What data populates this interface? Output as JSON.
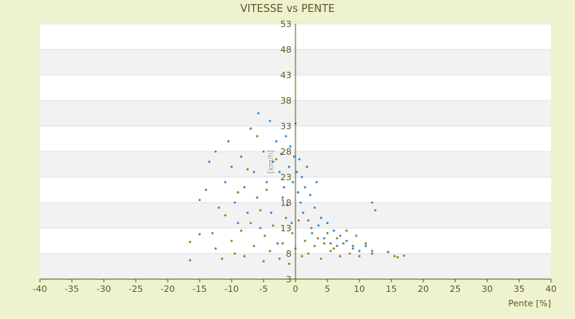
{
  "chart_data": {
    "type": "scatter",
    "title": "VITESSE vs PENTE",
    "xlabel": "Pente [%]",
    "ylabel": "[km/h]",
    "xlim": [
      -40,
      40
    ],
    "ylim": [
      3,
      53
    ],
    "x_ticks": [
      -40,
      -35,
      -30,
      -25,
      -20,
      -15,
      -10,
      -5,
      0,
      5,
      10,
      15,
      20,
      25,
      30,
      35,
      40
    ],
    "y_ticks": [
      3,
      8,
      13,
      18,
      23,
      28,
      33,
      38,
      43,
      48,
      53
    ],
    "grid": true,
    "band_colors": [
      "#ffffff",
      "#f2f2f2"
    ],
    "legend": "none",
    "series": [
      {
        "color": "#2e86d6",
        "points": [
          [
            -16.5,
            6.7
          ],
          [
            -15,
            11.8
          ],
          [
            -14,
            20.5
          ],
          [
            -13.5,
            26
          ],
          [
            -12.5,
            28
          ],
          [
            -12,
            17
          ],
          [
            -11,
            22
          ],
          [
            -10.5,
            30
          ],
          [
            -10,
            25
          ],
          [
            -9.5,
            18
          ],
          [
            -9,
            14
          ],
          [
            -8.5,
            27
          ],
          [
            -8,
            21
          ],
          [
            -7.5,
            16
          ],
          [
            -7,
            32.5
          ],
          [
            -6.5,
            24
          ],
          [
            -6,
            19
          ],
          [
            -5.8,
            35.5
          ],
          [
            -5.5,
            13
          ],
          [
            -5,
            28
          ],
          [
            -4.5,
            22
          ],
          [
            -4,
            34
          ],
          [
            -3.8,
            16
          ],
          [
            -3.5,
            26
          ],
          [
            -3,
            30
          ],
          [
            -2.8,
            10
          ],
          [
            -2.5,
            24
          ],
          [
            -2.2,
            27.5
          ],
          [
            -2,
            19
          ],
          [
            -1.8,
            21
          ],
          [
            -1.5,
            31
          ],
          [
            -1.3,
            17.5
          ],
          [
            -1,
            25
          ],
          [
            -0.8,
            29
          ],
          [
            -0.6,
            14
          ],
          [
            -0.4,
            22
          ],
          [
            -0.2,
            27
          ],
          [
            0,
            33.5
          ],
          [
            0.2,
            24
          ],
          [
            0.4,
            20
          ],
          [
            0.6,
            26.5
          ],
          [
            0.8,
            18
          ],
          [
            1,
            23
          ],
          [
            1.2,
            16
          ],
          [
            1.5,
            21
          ],
          [
            1.8,
            25
          ],
          [
            2,
            14.5
          ],
          [
            2.3,
            19.5
          ],
          [
            2.6,
            12
          ],
          [
            3,
            17
          ],
          [
            3.3,
            22
          ],
          [
            3.6,
            13.5
          ],
          [
            4,
            15
          ],
          [
            4.5,
            11
          ],
          [
            5,
            14
          ],
          [
            5.5,
            10
          ],
          [
            6,
            12.5
          ],
          [
            6.5,
            9.5
          ],
          [
            7,
            11.5
          ],
          [
            8,
            10.5
          ],
          [
            9,
            9
          ],
          [
            10,
            8.5
          ],
          [
            11,
            9.5
          ],
          [
            12,
            8
          ],
          [
            14.5,
            8.3
          ]
        ]
      },
      {
        "color": "#8a8a0f",
        "points": [
          [
            -16.5,
            10.3
          ],
          [
            -15,
            18.5
          ],
          [
            -13,
            12
          ],
          [
            -12.5,
            9
          ],
          [
            -11.5,
            7
          ],
          [
            -11,
            15.5
          ],
          [
            -10,
            10.5
          ],
          [
            -9.5,
            8
          ],
          [
            -9,
            20
          ],
          [
            -8.5,
            12.5
          ],
          [
            -8,
            7.5
          ],
          [
            -7.5,
            24.5
          ],
          [
            -7,
            14
          ],
          [
            -6.5,
            9.5
          ],
          [
            -6,
            31
          ],
          [
            -5.5,
            16.5
          ],
          [
            -5,
            6.5
          ],
          [
            -4.8,
            11.5
          ],
          [
            -4.5,
            20.5
          ],
          [
            -4,
            8.5
          ],
          [
            -3.5,
            13.5
          ],
          [
            -3,
            26.5
          ],
          [
            -2.5,
            7
          ],
          [
            -2,
            10
          ],
          [
            -1.5,
            15
          ],
          [
            -1,
            6
          ],
          [
            -0.5,
            12
          ],
          [
            0,
            9
          ],
          [
            0.5,
            14.5
          ],
          [
            1,
            7.5
          ],
          [
            1.5,
            10.5
          ],
          [
            2,
            8
          ],
          [
            2.5,
            13
          ],
          [
            3,
            9.5
          ],
          [
            3.5,
            11
          ],
          [
            4,
            7
          ],
          [
            4.5,
            10
          ],
          [
            5,
            12
          ],
          [
            5.5,
            8.5
          ],
          [
            6,
            9
          ],
          [
            6.5,
            11
          ],
          [
            7,
            7.5
          ],
          [
            7.5,
            10
          ],
          [
            8,
            12.5
          ],
          [
            8.5,
            8
          ],
          [
            9,
            9.5
          ],
          [
            9.5,
            11.5
          ],
          [
            10,
            7.5
          ],
          [
            11,
            10
          ],
          [
            12,
            8.5
          ],
          [
            12.5,
            16.5
          ],
          [
            12,
            18
          ],
          [
            15.5,
            7.5
          ],
          [
            16,
            7.3
          ],
          [
            17,
            7.6
          ]
        ]
      }
    ]
  }
}
